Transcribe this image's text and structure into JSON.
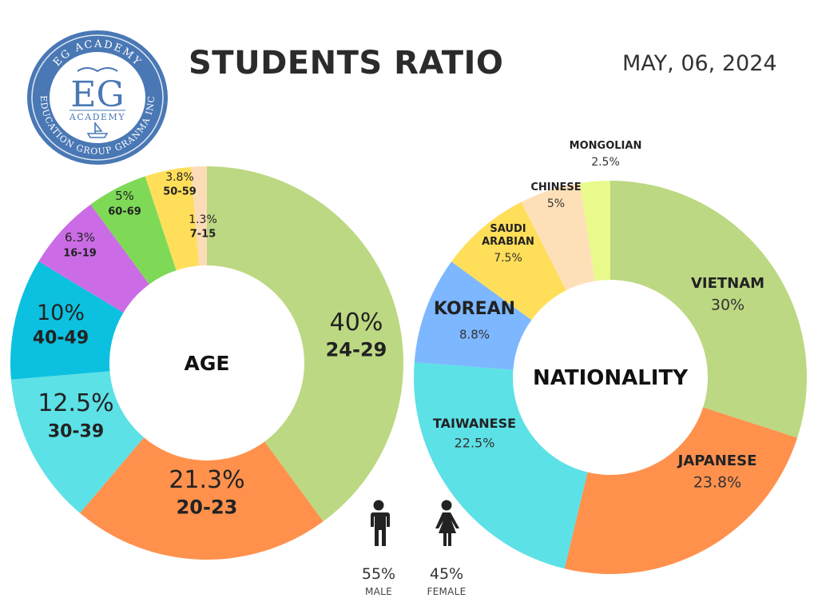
{
  "header": {
    "title": "STUDENTS RATIO",
    "date": "MAY, 06, 2024"
  },
  "logo": {
    "top_text": "EG ACADEMY",
    "mark": "EG",
    "sub": "ACADEMY",
    "bottom_text": "EDUCATION GROUP GRANMA INC"
  },
  "chart_data": [
    {
      "type": "donut",
      "center_label": "AGE",
      "slices": [
        {
          "label": "24-29",
          "value": 40,
          "pct_text": "40%",
          "color": "#bcd882"
        },
        {
          "label": "20-23",
          "value": 21.3,
          "pct_text": "21.3%",
          "color": "#ff914d"
        },
        {
          "label": "30-39",
          "value": 12.5,
          "pct_text": "12.5%",
          "color": "#5ce1e6"
        },
        {
          "label": "40-49",
          "value": 10,
          "pct_text": "10%",
          "color": "#0cc0df"
        },
        {
          "label": "16-19",
          "value": 6.3,
          "pct_text": "6.3%",
          "color": "#cb6ce6"
        },
        {
          "label": "60-69",
          "value": 5,
          "pct_text": "5%",
          "color": "#7ed957"
        },
        {
          "label": "50-59",
          "value": 3.8,
          "pct_text": "3.8%",
          "color": "#ffde59"
        },
        {
          "label": "7-15",
          "value": 1.3,
          "pct_text": "1.3%",
          "color": "#fcdcb6"
        }
      ]
    },
    {
      "type": "donut",
      "center_label": "NATIONALITY",
      "slices": [
        {
          "label": "VIETNAM",
          "value": 30,
          "pct_text": "30%",
          "color": "#bcd882"
        },
        {
          "label": "JAPANESE",
          "value": 23.8,
          "pct_text": "23.8%",
          "color": "#ff914d"
        },
        {
          "label": "TAIWANESE",
          "value": 22.5,
          "pct_text": "22.5%",
          "color": "#5ce1e6"
        },
        {
          "label": "KOREAN",
          "value": 8.8,
          "pct_text": "8.8%",
          "color": "#7cb7ff"
        },
        {
          "label": "SAUDI\nARABIAN",
          "value": 7.5,
          "pct_text": "7.5%",
          "color": "#ffde59"
        },
        {
          "label": "CHINESE",
          "value": 5,
          "pct_text": "5%",
          "color": "#fee0b8"
        },
        {
          "label": "MONGOLIAN",
          "value": 2.5,
          "pct_text": "2.5%",
          "color": "#e9f98b"
        }
      ]
    }
  ],
  "gender": [
    {
      "pct": "55%",
      "label": "MALE",
      "icon": "male-icon"
    },
    {
      "pct": "45%",
      "label": "FEMALE",
      "icon": "female-icon"
    }
  ]
}
